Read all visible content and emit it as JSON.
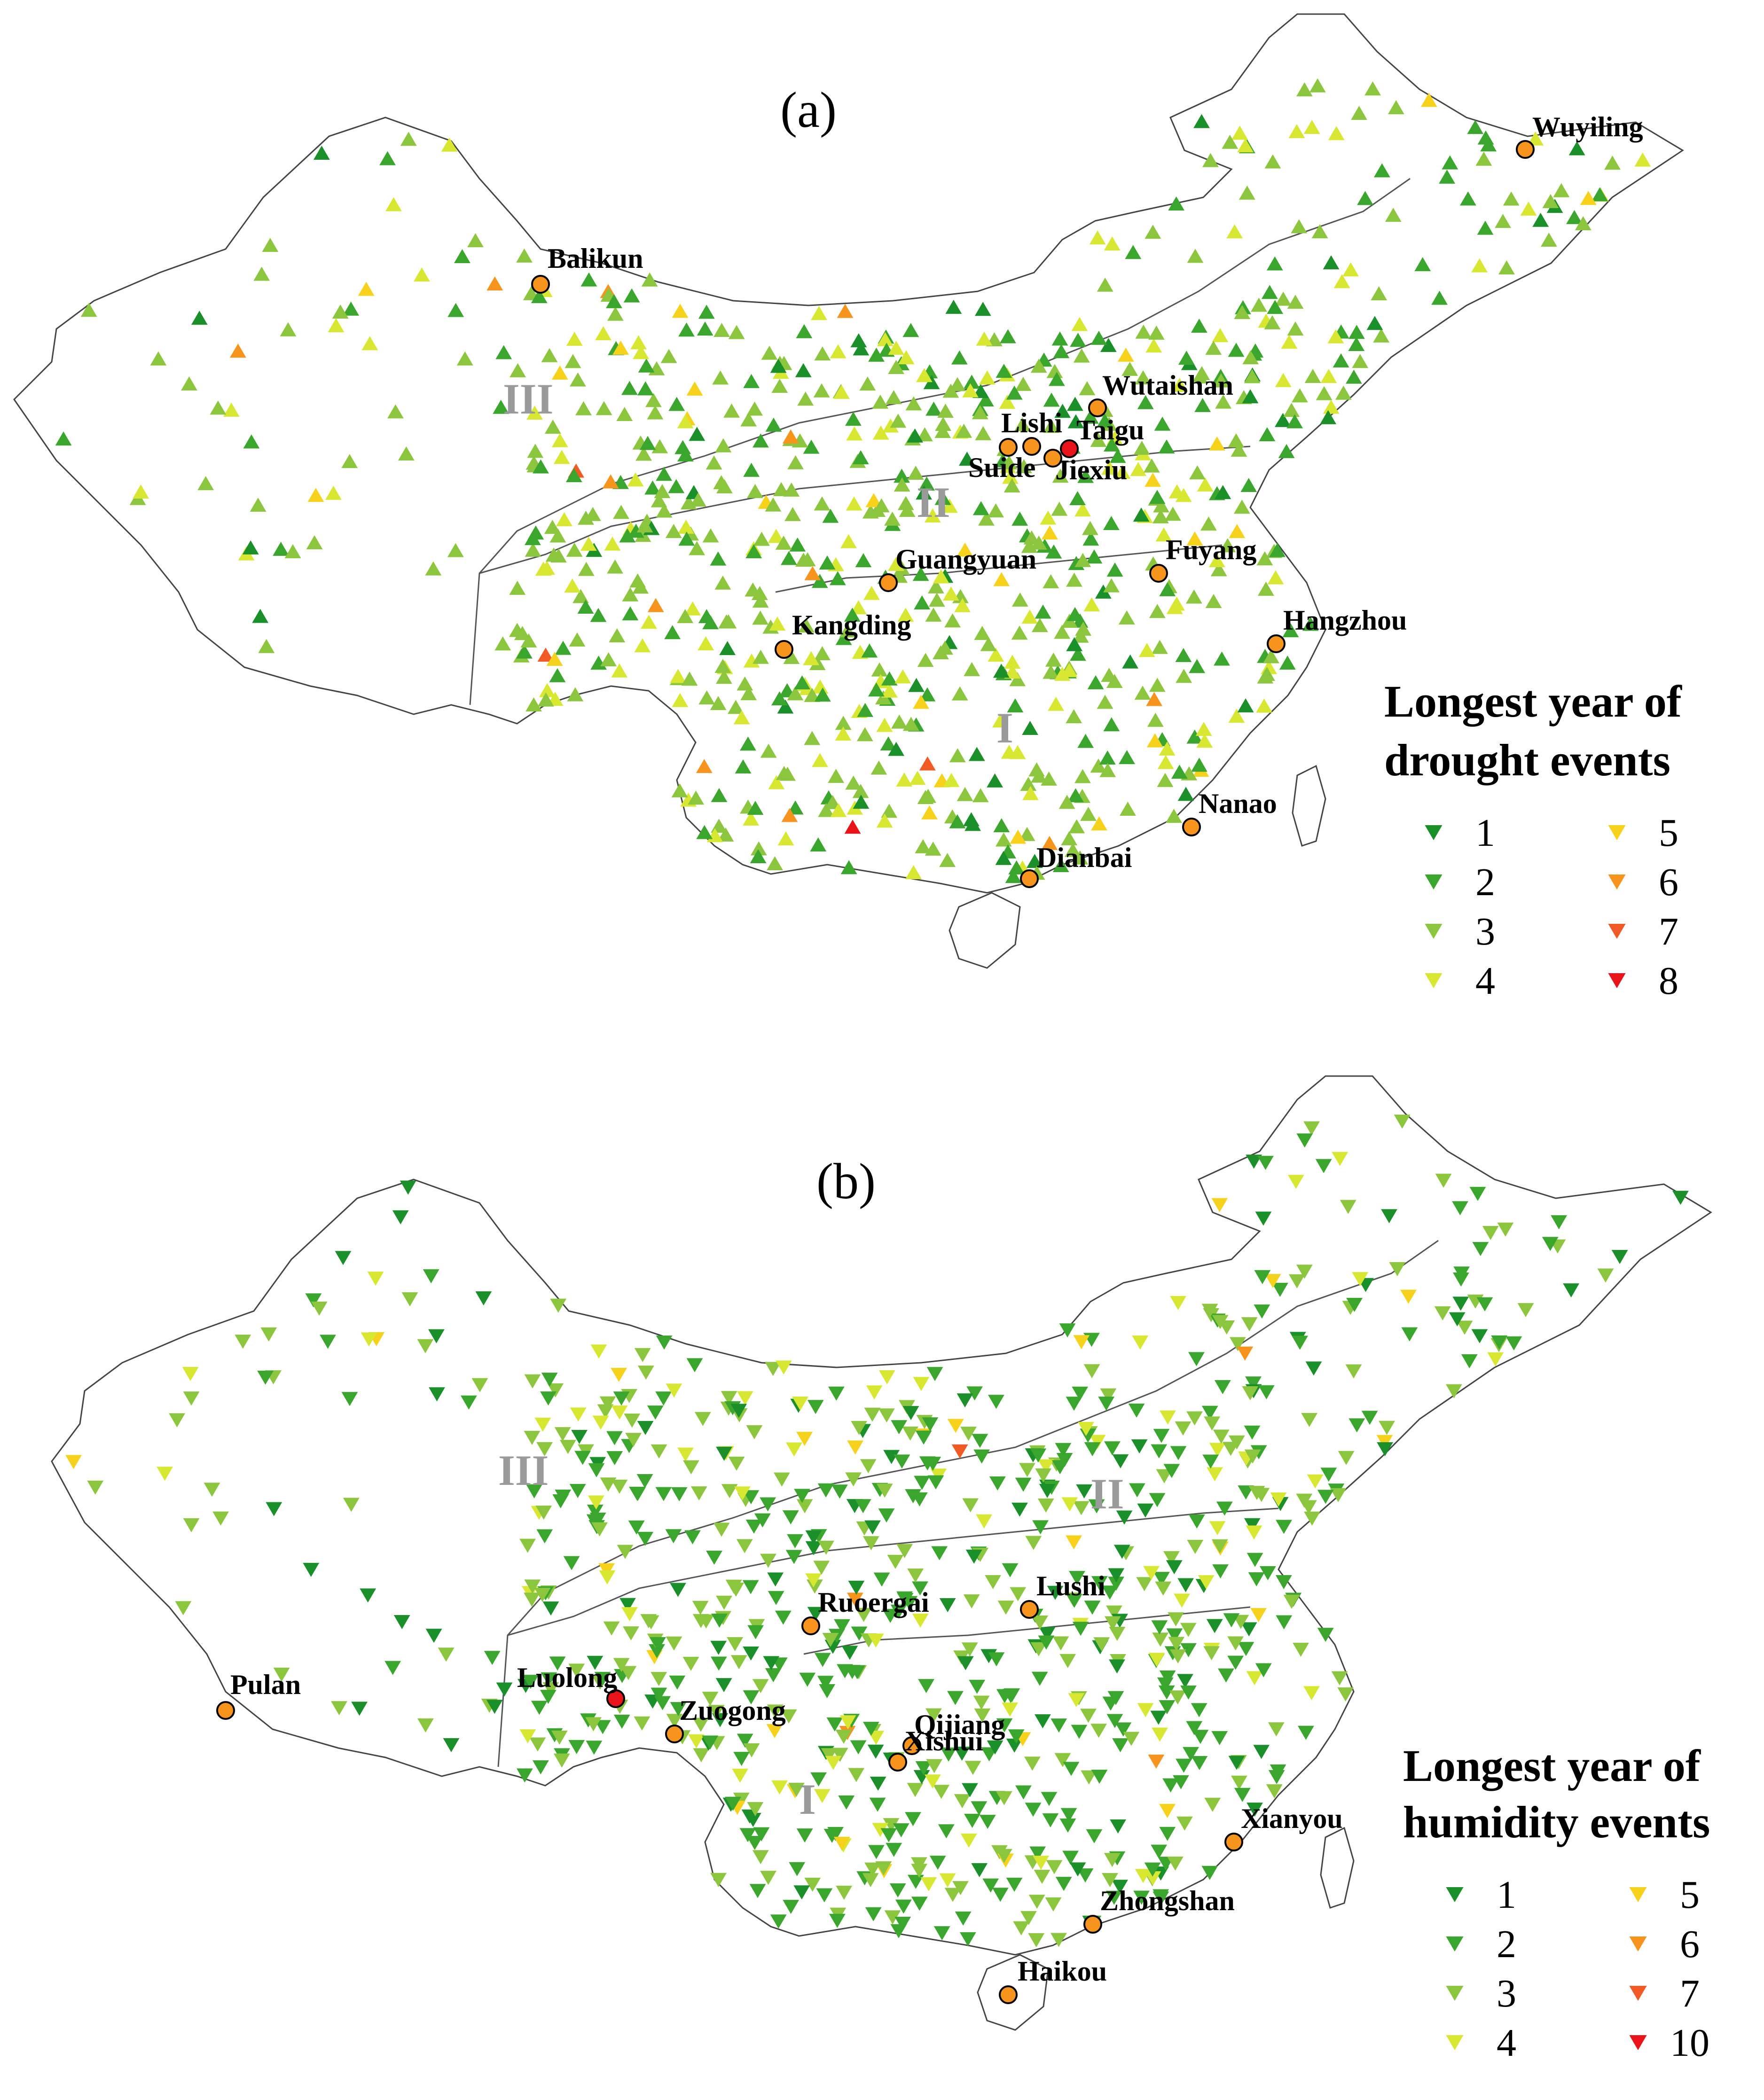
{
  "panel_a": {
    "label": "(a)",
    "legend": {
      "title_line1": "Longest year of",
      "title_line2": "drought events",
      "items": [
        {
          "value": "1",
          "color": "#1a8f2a"
        },
        {
          "value": "2",
          "color": "#3aa62e"
        },
        {
          "value": "3",
          "color": "#8cc63f"
        },
        {
          "value": "4",
          "color": "#d8e832"
        },
        {
          "value": "5",
          "color": "#f7d21c"
        },
        {
          "value": "6",
          "color": "#f7941d"
        },
        {
          "value": "7",
          "color": "#f15a24"
        },
        {
          "value": "8",
          "color": "#e8141a"
        }
      ]
    },
    "regions": [
      {
        "name": "I"
      },
      {
        "name": "II"
      },
      {
        "name": "III"
      }
    ],
    "stations": [
      {
        "name": "Wuyiling"
      },
      {
        "name": "Balikun"
      },
      {
        "name": "Wutaishan"
      },
      {
        "name": "Lishi"
      },
      {
        "name": "Taigu"
      },
      {
        "name": "Suide"
      },
      {
        "name": "Jiexiu"
      },
      {
        "name": "Guangyuan"
      },
      {
        "name": "Fuyang"
      },
      {
        "name": "Kangding"
      },
      {
        "name": "Hangzhou"
      },
      {
        "name": "Nanao"
      },
      {
        "name": "Dianbai"
      }
    ]
  },
  "panel_b": {
    "label": "(b)",
    "legend": {
      "title_line1": "Longest year of",
      "title_line2": "humidity events",
      "items": [
        {
          "value": "1",
          "color": "#1a8f2a"
        },
        {
          "value": "2",
          "color": "#3aa62e"
        },
        {
          "value": "3",
          "color": "#8cc63f"
        },
        {
          "value": "4",
          "color": "#d8e832"
        },
        {
          "value": "5",
          "color": "#f7d21c"
        },
        {
          "value": "6",
          "color": "#f7941d"
        },
        {
          "value": "7",
          "color": "#f15a24"
        },
        {
          "value": "10",
          "color": "#e8141a"
        }
      ]
    },
    "regions": [
      {
        "name": "I"
      },
      {
        "name": "II"
      },
      {
        "name": "III"
      }
    ],
    "stations": [
      {
        "name": "Ruoergai"
      },
      {
        "name": "Lushi"
      },
      {
        "name": "Pulan"
      },
      {
        "name": "Luolong"
      },
      {
        "name": "Zuogong"
      },
      {
        "name": "Qijiang"
      },
      {
        "name": "Xishui"
      },
      {
        "name": "Xianyou"
      },
      {
        "name": "Zhongshan"
      },
      {
        "name": "Haikou"
      }
    ]
  }
}
